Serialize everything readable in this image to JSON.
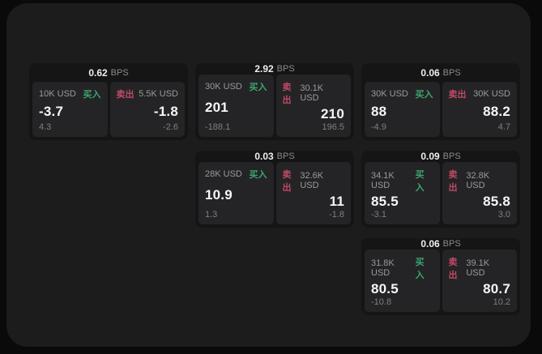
{
  "labels": {
    "bps": "BPS",
    "buy": "买入",
    "sell": "卖出"
  },
  "colors": {
    "buy": "#3da56f",
    "sell": "#bf4a64",
    "panel": "#1c1c1d",
    "card": "#151516",
    "subpanel": "#242426"
  },
  "cards": [
    {
      "bps": "0.62",
      "buy": {
        "amount": "10K USD",
        "value": "-3.7",
        "sub": "4.3"
      },
      "sell": {
        "amount": "5.5K USD",
        "value": "-1.8",
        "sub": "-2.6"
      }
    },
    {
      "bps": "2.92",
      "buy": {
        "amount": "30K USD",
        "value": "201",
        "sub": "-188.1"
      },
      "sell": {
        "amount": "30.1K USD",
        "value": "210",
        "sub": "196.5"
      }
    },
    {
      "bps": "0.06",
      "buy": {
        "amount": "30K USD",
        "value": "88",
        "sub": "-4.9"
      },
      "sell": {
        "amount": "30K USD",
        "value": "88.2",
        "sub": "4.7"
      }
    },
    {
      "bps": "0.03",
      "buy": {
        "amount": "28K USD",
        "value": "10.9",
        "sub": "1.3"
      },
      "sell": {
        "amount": "32.6K USD",
        "value": "11",
        "sub": "-1.8"
      }
    },
    {
      "bps": "0.09",
      "buy": {
        "amount": "34.1K USD",
        "value": "85.5",
        "sub": "-3.1"
      },
      "sell": {
        "amount": "32.8K USD",
        "value": "85.8",
        "sub": "3.0"
      }
    },
    {
      "bps": "0.06",
      "buy": {
        "amount": "31.8K USD",
        "value": "80.5",
        "sub": "-10.8"
      },
      "sell": {
        "amount": "39.1K USD",
        "value": "80.7",
        "sub": "10.2"
      }
    }
  ]
}
